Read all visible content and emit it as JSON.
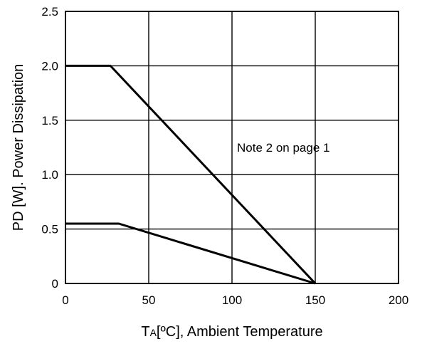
{
  "chart_data": {
    "type": "line",
    "title": "",
    "xlabel": {
      "main": "T",
      "sub": "A",
      "rest": "[ºC], Ambient Temperature"
    },
    "ylabel": "PD [W]. Power Dissipation",
    "xlim": [
      0,
      200
    ],
    "ylim": [
      0,
      2.5
    ],
    "x_ticks": [
      0,
      50,
      100,
      150,
      200
    ],
    "x_tick_labels": [
      "0",
      "50",
      "100",
      "150",
      "200"
    ],
    "y_ticks": [
      0,
      0.5,
      1.0,
      1.5,
      2.0,
      2.5
    ],
    "y_tick_labels": [
      "0",
      "0.5",
      "1.0",
      "1.5",
      "2.0",
      "2.5"
    ],
    "grid": true,
    "series": [
      {
        "points": [
          [
            0,
            2.0
          ],
          [
            27,
            2.0
          ],
          [
            150,
            0
          ]
        ]
      },
      {
        "points": [
          [
            0,
            0.55
          ],
          [
            32,
            0.55
          ],
          [
            150,
            0
          ]
        ]
      }
    ],
    "annotations": [
      {
        "text": "Note 2 on page 1",
        "x": 103,
        "y": 1.25
      }
    ],
    "colors": {
      "line": "#000000",
      "grid": "#000000"
    }
  }
}
